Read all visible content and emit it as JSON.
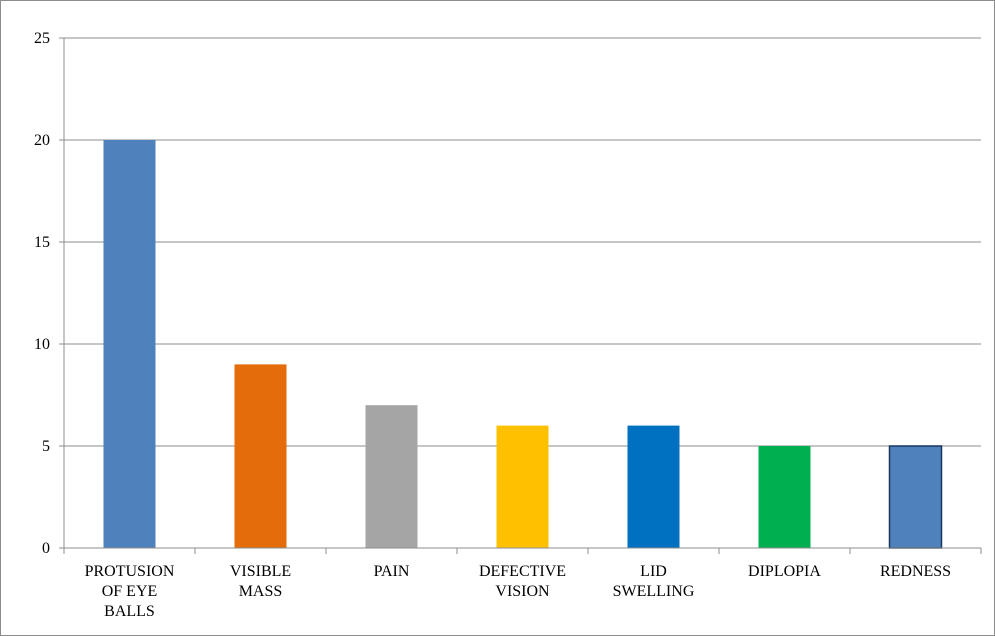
{
  "chart_data": {
    "type": "bar",
    "title": "",
    "xlabel": "",
    "ylabel": "",
    "categories": [
      "PROTUSION OF EYE BALLS",
      "VISIBLE MASS",
      "PAIN",
      "DEFECTIVE VISION",
      "LID SWELLING",
      "DIPLOPIA",
      "REDNESS"
    ],
    "category_lines": [
      [
        "PROTUSION",
        "OF EYE",
        "BALLS"
      ],
      [
        "VISIBLE",
        "MASS"
      ],
      [
        "PAIN"
      ],
      [
        "DEFECTIVE",
        "VISION"
      ],
      [
        "LID",
        "SWELLING"
      ],
      [
        "DIPLOPIA"
      ],
      [
        "REDNESS"
      ]
    ],
    "values": [
      20,
      9,
      7,
      6,
      6,
      5,
      5
    ],
    "bar_colors": [
      "#4f81bd",
      "#e46c0a",
      "#a5a5a5",
      "#ffc000",
      "#0070c0",
      "#00b050",
      "#4f81bd"
    ],
    "bar_outline_colors": [
      "none",
      "none",
      "none",
      "none",
      "none",
      "none",
      "#17375e"
    ],
    "ylim": [
      0,
      25
    ],
    "yticks": [
      0,
      5,
      10,
      15,
      20,
      25
    ],
    "grid": true,
    "legend": "none",
    "gridline_color": "#8c8c8c",
    "axis_color": "#8c8c8c"
  }
}
